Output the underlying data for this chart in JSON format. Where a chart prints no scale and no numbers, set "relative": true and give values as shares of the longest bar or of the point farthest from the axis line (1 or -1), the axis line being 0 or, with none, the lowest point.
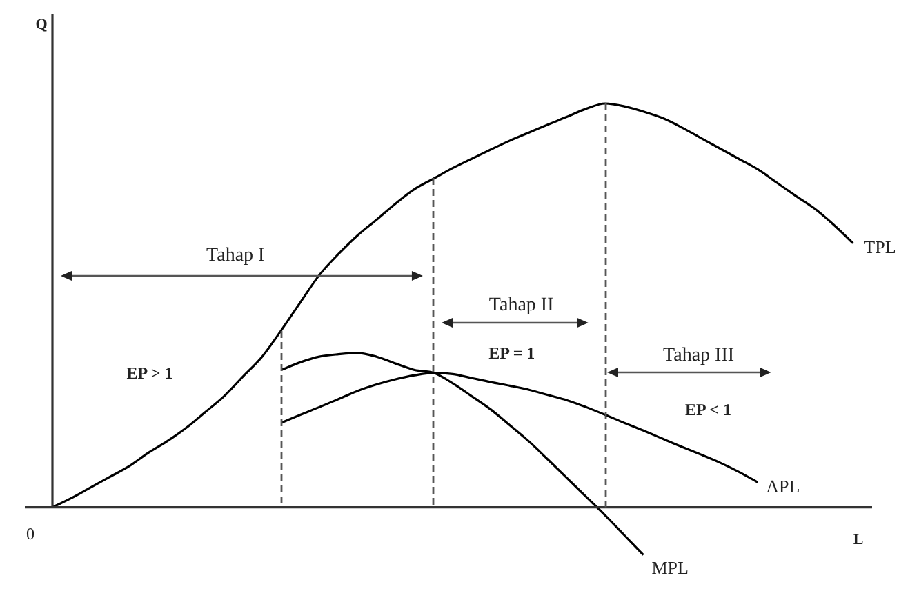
{
  "chart_data": {
    "type": "line",
    "relative": true,
    "xlabel": "L",
    "ylabel": "Q",
    "grid": false,
    "legend": false,
    "marker": "none",
    "line_style": "solid",
    "categories": [
      null,
      null,
      null,
      null,
      null,
      null,
      null,
      null,
      null,
      null,
      null,
      null,
      null,
      null,
      null,
      null,
      null,
      null,
      null,
      null,
      null,
      null,
      null,
      null,
      null,
      null,
      null,
      null,
      null,
      null,
      null,
      null,
      null,
      null,
      null,
      null,
      null,
      null,
      null,
      null,
      null,
      null,
      null,
      null
    ],
    "series": [
      {
        "name": "TPL",
        "color": "#000000",
        "values": [
          0,
          0.023,
          0.049,
          0.075,
          0.101,
          0.134,
          0.163,
          0.196,
          0.235,
          0.275,
          0.324,
          0.373,
          0.438,
          0.507,
          0.575,
          0.627,
          0.673,
          0.712,
          0.752,
          0.788,
          0.814,
          0.84,
          0.863,
          0.886,
          0.908,
          0.928,
          0.948,
          0.967,
          0.987,
          1,
          0.993,
          0.98,
          0.964,
          0.941,
          0.915,
          0.889,
          0.863,
          0.837,
          0.804,
          0.771,
          0.739,
          0.699,
          0.654,
          null
        ]
      },
      {
        "name": "APL",
        "color": "#000000",
        "values": [
          null,
          null,
          null,
          null,
          null,
          null,
          null,
          null,
          null,
          null,
          null,
          null,
          0.209,
          0.229,
          0.248,
          0.268,
          0.288,
          0.304,
          0.317,
          0.327,
          0.333,
          0.33,
          0.32,
          0.31,
          0.301,
          0.291,
          0.278,
          0.265,
          0.248,
          0.229,
          0.209,
          0.19,
          0.17,
          0.15,
          0.131,
          0.111,
          0.088,
          0.062,
          null,
          null,
          null,
          null,
          null,
          null
        ]
      },
      {
        "name": "MPL",
        "color": "#000000",
        "values": [
          null,
          null,
          null,
          null,
          null,
          null,
          null,
          null,
          null,
          null,
          null,
          null,
          0.34,
          0.359,
          0.373,
          0.379,
          0.382,
          0.373,
          0.356,
          0.34,
          0.333,
          0.307,
          0.275,
          0.242,
          0.203,
          0.163,
          0.118,
          0.072,
          0.026,
          -0.02,
          -0.069,
          -0.118,
          null,
          null,
          null,
          null,
          null,
          null,
          null,
          null,
          null,
          null,
          null,
          null
        ]
      }
    ],
    "annotations": [
      "Tahap I",
      "Tahap II",
      "Tahap III",
      "EP > 1",
      "EP = 1",
      "EP < 1",
      "0"
    ]
  }
}
